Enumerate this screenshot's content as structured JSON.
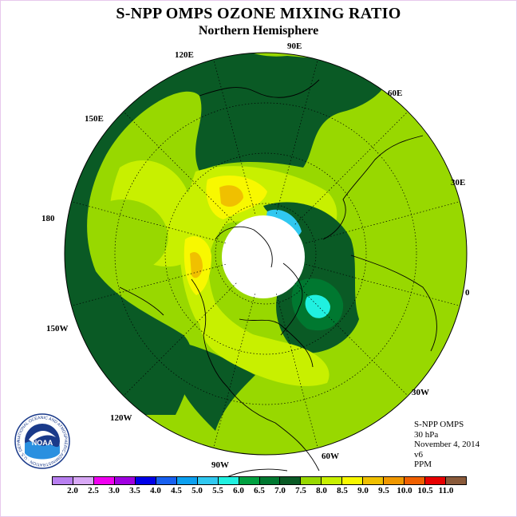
{
  "header": {
    "title": "S-NPP OMPS OZONE MIXING RATIO",
    "subtitle": "Northern Hemisphere"
  },
  "map": {
    "projection": "north-polar-stereographic",
    "longitude_labels": [
      "90E",
      "60E",
      "30E",
      "0",
      "30W",
      "60W",
      "90W",
      "120W",
      "150W",
      "180",
      "150E",
      "120E"
    ],
    "pole_region": "no data (white)"
  },
  "info": {
    "instrument": "S-NPP OMPS",
    "level": "30 hPa",
    "date": "November 4, 2014",
    "version": "v6",
    "units": "PPM"
  },
  "colorbar": {
    "ticks": [
      "2.0",
      "2.5",
      "3.0",
      "3.5",
      "4.0",
      "4.5",
      "5.0",
      "5.5",
      "6.0",
      "6.5",
      "7.0",
      "7.5",
      "8.0",
      "8.5",
      "9.0",
      "9.5",
      "10.0",
      "10.5",
      "11.0"
    ],
    "colors": [
      "#b87ff0",
      "#d8a8f5",
      "#f000f0",
      "#a000e0",
      "#0000e8",
      "#1860f0",
      "#0ca0f0",
      "#30c8f0",
      "#20f0e0",
      "#00a040",
      "#007830",
      "#0a5a25",
      "#98d800",
      "#c8f000",
      "#f8f800",
      "#f0c000",
      "#f09800",
      "#f06000",
      "#e80000",
      "#8a5a3a"
    ]
  },
  "logo": {
    "text": "NOAA",
    "ring_text": "NATIONAL OCEANIC AND ATMOSPHERIC ADMINISTRATION · U.S. DEPARTMENT OF COMMERCE"
  }
}
